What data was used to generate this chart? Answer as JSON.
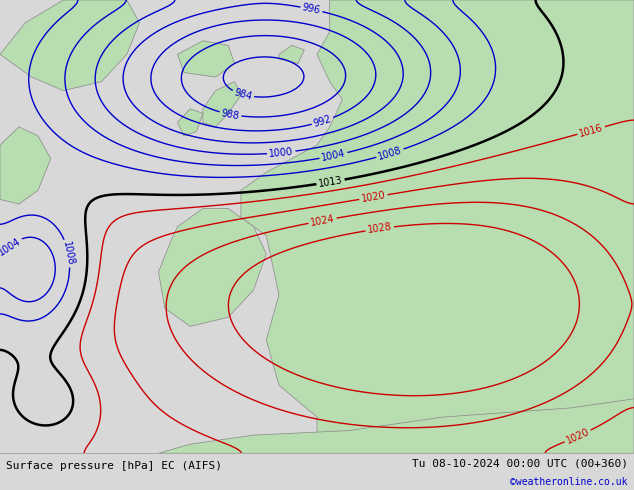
{
  "title_left": "Surface pressure [hPa] EC (AIFS)",
  "title_right": "Tu 08-10-2024 00:00 UTC (00+360)",
  "copyright": "©weatheronline.co.uk",
  "figsize": [
    6.34,
    4.9
  ],
  "dpi": 100,
  "background_color": "#d8d8d8",
  "land_color": "#b8ddb0",
  "sea_color": "#d8d8d8",
  "isobar_blue_color": "#0000cc",
  "isobar_black_color": "#000000",
  "isobar_red_color": "#cc0000",
  "label_fontsize": 7,
  "footer_fontsize": 8,
  "footer_bg": "#ffffff",
  "blue_levels": [
    984,
    988,
    992,
    996,
    1000,
    1004,
    1008
  ],
  "black_levels": [
    1013
  ],
  "red_levels": [
    1016,
    1020,
    1024,
    1028
  ],
  "coastline_color": "#888888",
  "coastline_lw": 0.5
}
